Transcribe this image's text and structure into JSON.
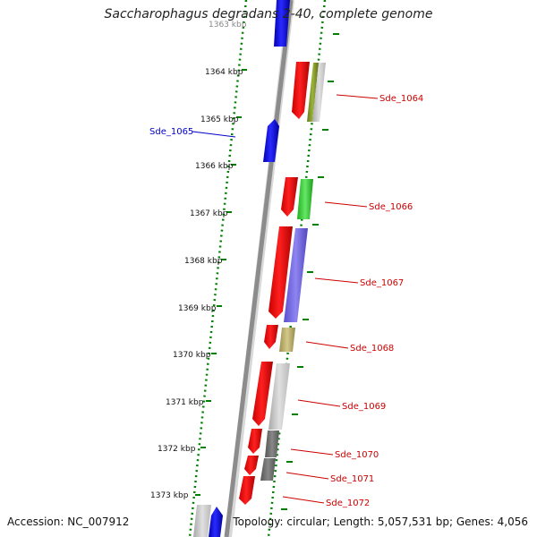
{
  "title": "Saccharophagus degradans 2-40, complete genome",
  "footer": {
    "accession": "Accession: NC_007912",
    "summary": "Topology: circular; Length: 5,057,531 bp; Genes: 4,056"
  },
  "colors": {
    "forward_strand": "#0000ff",
    "reverse_strand": "#ff0000",
    "backbone": "#8c8c8c",
    "tick": "#008000",
    "label_reverse": "#cc0000",
    "label_forward": "#0000cc"
  },
  "ticks": [
    {
      "label": "1363 kbp"
    },
    {
      "label": "1364 kbp"
    },
    {
      "label": "1365 kbp"
    },
    {
      "label": "1366 kbp"
    },
    {
      "label": "1367 kbp"
    },
    {
      "label": "1368 kbp"
    },
    {
      "label": "1369 kbp"
    },
    {
      "label": "1370 kbp"
    },
    {
      "label": "1371 kbp"
    },
    {
      "label": "1372 kbp"
    },
    {
      "label": "1373 kbp"
    }
  ],
  "gene_labels": [
    {
      "name": "Sde_1064",
      "strand": "reverse"
    },
    {
      "name": "Sde_1065",
      "strand": "forward"
    },
    {
      "name": "Sde_1066",
      "strand": "reverse"
    },
    {
      "name": "Sde_1067",
      "strand": "reverse"
    },
    {
      "name": "Sde_1068",
      "strand": "reverse"
    },
    {
      "name": "Sde_1069",
      "strand": "reverse"
    },
    {
      "name": "Sde_1070",
      "strand": "reverse"
    },
    {
      "name": "Sde_1071",
      "strand": "reverse"
    },
    {
      "name": "Sde_1072",
      "strand": "reverse"
    }
  ]
}
